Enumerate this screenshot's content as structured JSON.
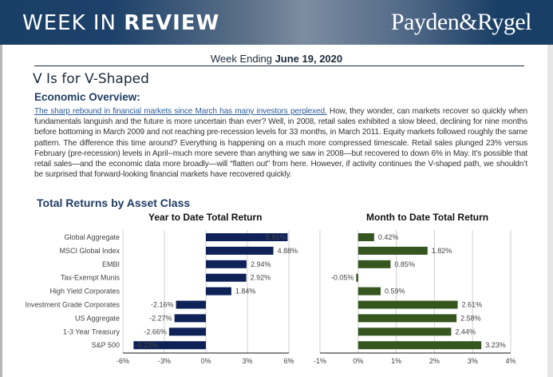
{
  "banner": {
    "title_light": "WEEK IN ",
    "title_bold": "REVIEW",
    "logo": "Payden&Rygel"
  },
  "week": {
    "prefix": "Week Ending ",
    "date": "June 19, 2020"
  },
  "headline": "V Is for V-Shaped",
  "overview": {
    "heading": "Economic Overview:",
    "link_text": "The sharp rebound in financial markets since March has many investors perplexed.",
    "body": " How, they wonder, can markets recover so quickly when fundamentals languish and the future is more uncertain than ever? Well, in 2008, retail sales exhibited a slow bleed, declining for nine months before bottoming in March 2009 and not reaching pre-recession levels for 33 months, in March 2011. Equity markets followed roughly the same pattern. The difference this time around? Everything is happening on a much more compressed timescale. Retail sales plunged 23% versus February (pre-recession) levels in April--much more severe than anything we saw in 2008—but recovered to down 6% in May. It’s possible that retail sales—and the economic data more broadly—will “flatten out” from here. However, if activity continues the V-shaped path, we shouldn’t be surprised that forward-looking financial markets have recovered quickly."
  },
  "section_title": "Total Returns by Asset Class",
  "chart_data": [
    {
      "type": "bar",
      "orientation": "horizontal",
      "title": "Year to Date Total Return",
      "categories": [
        "Global Aggregate",
        "MSCI Global Index",
        "EMBI",
        "Tax-Exempt Munis",
        "High Yield Corporates",
        "Investment Grade Corporates",
        "US Aggregate",
        "1-3 Year Treasury",
        "S&P 500"
      ],
      "values": [
        5.91,
        4.88,
        2.94,
        2.92,
        1.84,
        -2.16,
        -2.27,
        -2.66,
        -5.23
      ],
      "labels": [
        "5.91%",
        "4.88%",
        "2.94%",
        "2.92%",
        "1.84%",
        "-2.16%",
        "-2.27%",
        "-2.66%",
        "-5.23%"
      ],
      "xlim": [
        -6,
        6
      ],
      "ticks": [
        -6,
        -3,
        0,
        3,
        6
      ],
      "tick_labels": [
        "-6%",
        "-3%",
        "0%",
        "3%",
        "6%"
      ],
      "grid": true,
      "color": "#0f2257"
    },
    {
      "type": "bar",
      "orientation": "horizontal",
      "title": "Month to Date Total Return",
      "categories": [
        "Global Aggregate",
        "MSCI Global Index",
        "EMBI",
        "Tax-Exempt Munis",
        "High Yield Corporates",
        "Investment Grade Corporates",
        "US Aggregate",
        "1-3 Year Treasury",
        "S&P 500"
      ],
      "values": [
        0.42,
        1.82,
        0.85,
        -0.05,
        0.59,
        2.61,
        2.58,
        2.44,
        3.23
      ],
      "labels": [
        "0.42%",
        "1.82%",
        "0.85%",
        "-0.05%",
        "0.59%",
        "2.61%",
        "2.58%",
        "2.44%",
        "3.23%"
      ],
      "xlim": [
        -1,
        4
      ],
      "ticks": [
        -1,
        0,
        1,
        2,
        3,
        4
      ],
      "tick_labels": [
        "-1%",
        "0%",
        "1%",
        "2%",
        "3%",
        "4%"
      ],
      "grid": true,
      "color": "#36561f"
    }
  ]
}
